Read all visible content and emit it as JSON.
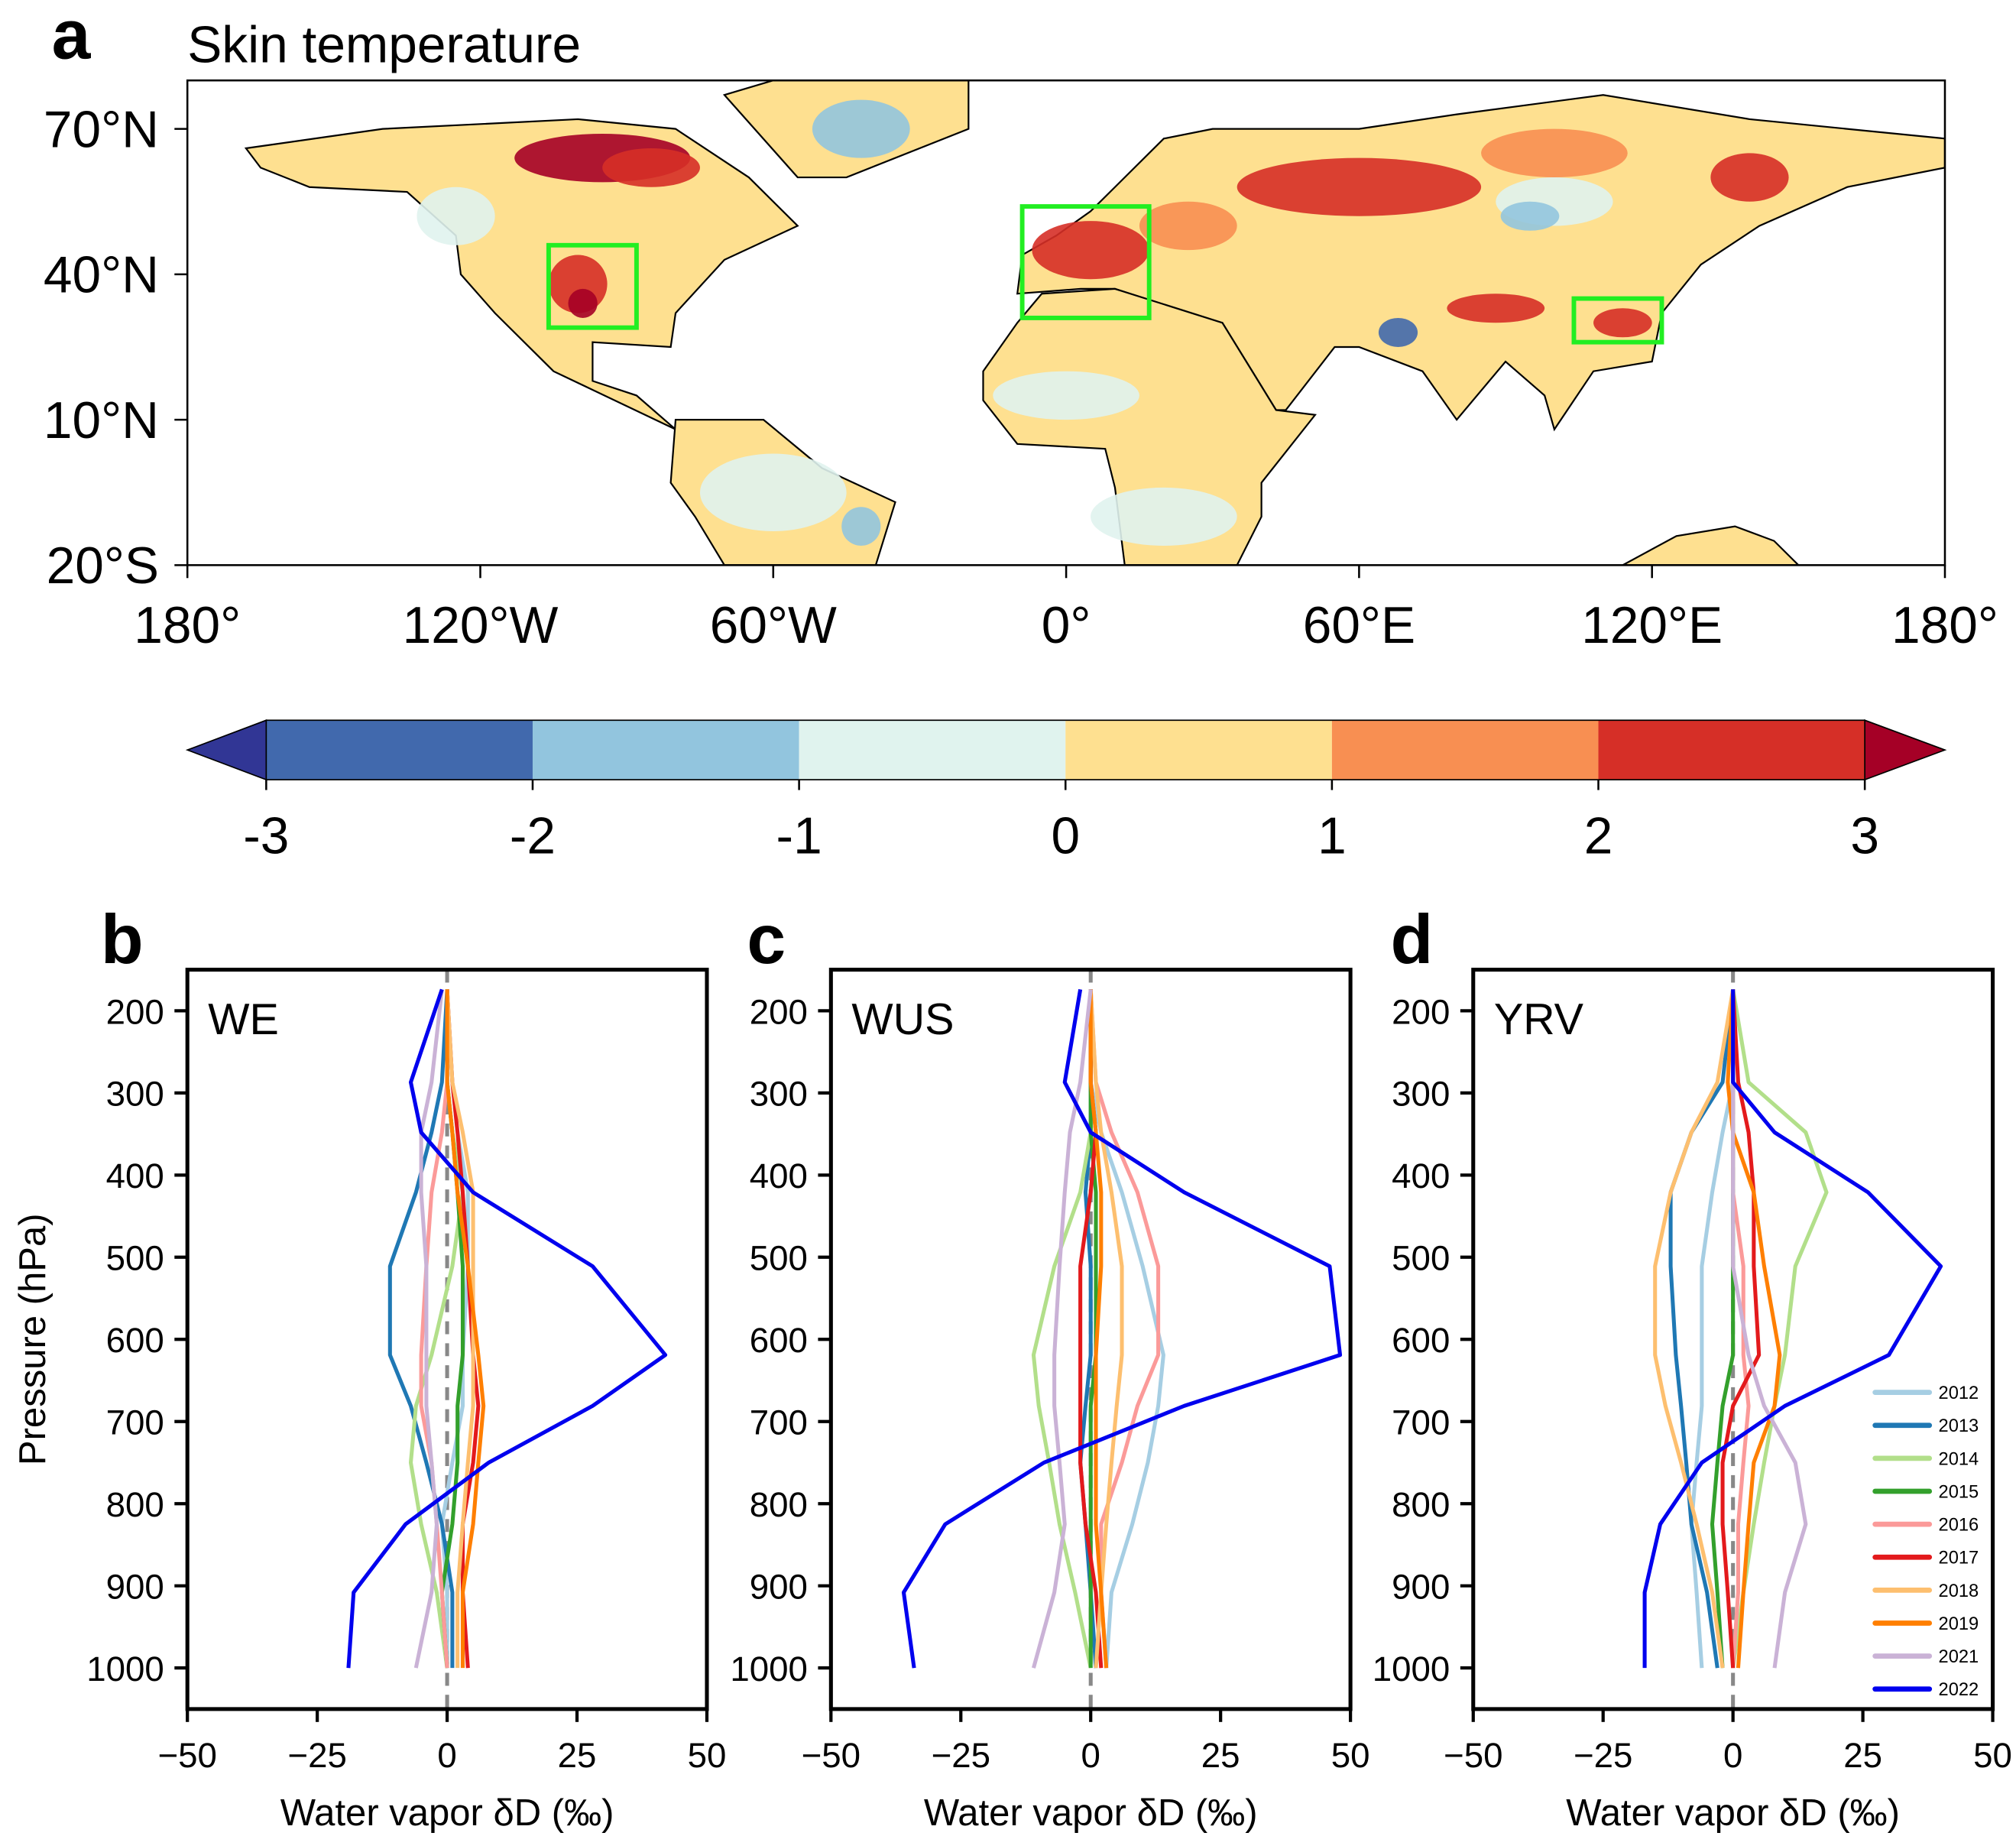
{
  "panel_labels": {
    "a": "a",
    "b": "b",
    "c": "c",
    "d": "d"
  },
  "chart_data": [
    {
      "type": "heatmap",
      "subtype": "map",
      "title": "Skin temperature",
      "lon_range": [
        -180,
        180
      ],
      "lat_range": [
        -20,
        80
      ],
      "lon_ticks": [
        {
          "v": -180,
          "label": "180°"
        },
        {
          "v": -120,
          "label": "120°W"
        },
        {
          "v": -60,
          "label": "60°W"
        },
        {
          "v": 0,
          "label": "0°"
        },
        {
          "v": 60,
          "label": "60°E"
        },
        {
          "v": 120,
          "label": "120°E"
        },
        {
          "v": 180,
          "label": "180°"
        }
      ],
      "lat_ticks": [
        {
          "v": 70,
          "label": "70°N"
        },
        {
          "v": 40,
          "label": "40°N"
        },
        {
          "v": 10,
          "label": "10°N"
        },
        {
          "v": -20,
          "label": "20°S"
        }
      ],
      "regions": [
        {
          "name": "WUS",
          "lon": [
            -106,
            -88
          ],
          "lat": [
            29,
            46
          ]
        },
        {
          "name": "WE",
          "lon": [
            -9,
            17
          ],
          "lat": [
            31,
            54
          ]
        },
        {
          "name": "YRV",
          "lon": [
            104,
            122
          ],
          "lat": [
            26,
            35
          ]
        }
      ],
      "region_box_color": "#22ee22",
      "colorbar": {
        "ticks": [
          "-3",
          "-2",
          "-1",
          "0",
          "1",
          "2",
          "3"
        ],
        "colors": [
          "#313695",
          "#4169ad",
          "#92c5de",
          "#e0f3ee",
          "#fee090",
          "#f88f52",
          "#d62f27",
          "#a50026"
        ],
        "extend": "both"
      }
    },
    {
      "type": "line",
      "region": "WE",
      "xlabel": "Water vapor δD (‰)",
      "ylabel": "Pressure (hPa)",
      "xlim": [
        -50,
        50
      ],
      "ylim": [
        1050,
        150
      ],
      "y_inverted": true,
      "xticks": [
        "−50",
        "−25",
        "0",
        "25",
        "50"
      ],
      "yticks": [
        "200",
        "300",
        "400",
        "500",
        "600",
        "700",
        "800",
        "900",
        "1000"
      ],
      "pressure": [
        1000,
        908,
        825,
        750,
        681,
        619,
        511,
        421,
        348,
        287,
        174
      ],
      "series": [
        {
          "name": "2012",
          "color": "#a6cee3",
          "values": [
            0,
            0,
            -1,
            1,
            3,
            3,
            4,
            4,
            2,
            1,
            0
          ]
        },
        {
          "name": "2013",
          "color": "#1f78b4",
          "values": [
            1,
            1,
            -1,
            -4,
            -7,
            -11,
            -11,
            -6,
            -3,
            -1,
            0
          ]
        },
        {
          "name": "2014",
          "color": "#b2df8a",
          "values": [
            0,
            -2,
            -5,
            -7,
            -6,
            -3,
            1,
            3,
            1,
            0,
            0
          ]
        },
        {
          "name": "2015",
          "color": "#33a02c",
          "values": [
            0,
            -1,
            1,
            2,
            2,
            3,
            3,
            2,
            1,
            0,
            0
          ]
        },
        {
          "name": "2016",
          "color": "#fb9a99",
          "values": [
            0,
            -1,
            -2,
            -3,
            -5,
            -5,
            -4,
            -3,
            -1,
            0,
            0
          ]
        },
        {
          "name": "2017",
          "color": "#e31a1c",
          "values": [
            4,
            3,
            3,
            5,
            6,
            5,
            4,
            3,
            2,
            1,
            0
          ]
        },
        {
          "name": "2018",
          "color": "#fdbf6f",
          "values": [
            2,
            2,
            3,
            4,
            5,
            5,
            5,
            5,
            3,
            1,
            0
          ]
        },
        {
          "name": "2019",
          "color": "#ff7f00",
          "values": [
            3,
            3,
            5,
            6,
            7,
            6,
            4,
            2,
            1,
            0,
            0
          ]
        },
        {
          "name": "2021",
          "color": "#cab2d6",
          "values": [
            -6,
            -3,
            -2,
            -3,
            -4,
            -4,
            -4,
            -5,
            -5,
            -3,
            -1
          ]
        },
        {
          "name": "2022",
          "color": "#0000ee",
          "values": [
            -19,
            -18,
            -8,
            8,
            28,
            42,
            28,
            5,
            -5,
            -7,
            -1
          ]
        }
      ]
    },
    {
      "type": "line",
      "region": "WUS",
      "xlabel": "Water vapor δD (‰)",
      "xlim": [
        -50,
        50
      ],
      "ylim": [
        1050,
        150
      ],
      "y_inverted": true,
      "xticks": [
        "−50",
        "−25",
        "0",
        "25",
        "50"
      ],
      "yticks": [
        "200",
        "300",
        "400",
        "500",
        "600",
        "700",
        "800",
        "900",
        "1000"
      ],
      "pressure": [
        1000,
        908,
        825,
        750,
        681,
        619,
        511,
        421,
        348,
        287,
        174
      ],
      "series": [
        {
          "name": "2012",
          "color": "#a6cee3",
          "values": [
            3,
            4,
            8,
            11,
            13,
            14,
            10,
            6,
            2,
            0,
            0
          ]
        },
        {
          "name": "2013",
          "color": "#1f78b4",
          "values": [
            1,
            0,
            -1,
            -2,
            -1,
            0,
            0,
            -1,
            0,
            0,
            0
          ]
        },
        {
          "name": "2014",
          "color": "#b2df8a",
          "values": [
            0,
            -3,
            -6,
            -8,
            -10,
            -11,
            -7,
            -2,
            0,
            0,
            0
          ]
        },
        {
          "name": "2015",
          "color": "#33a02c",
          "values": [
            0,
            0,
            0,
            0,
            0,
            1,
            1,
            1,
            0,
            0,
            0
          ]
        },
        {
          "name": "2016",
          "color": "#fb9a99",
          "values": [
            3,
            2,
            2,
            6,
            9,
            13,
            13,
            9,
            4,
            1,
            0
          ]
        },
        {
          "name": "2017",
          "color": "#e31a1c",
          "values": [
            2,
            1,
            -1,
            -2,
            -2,
            -2,
            -2,
            0,
            1,
            0,
            0
          ]
        },
        {
          "name": "2018",
          "color": "#fdbf6f",
          "values": [
            1,
            2,
            3,
            4,
            5,
            6,
            6,
            4,
            2,
            1,
            0
          ]
        },
        {
          "name": "2019",
          "color": "#ff7f00",
          "values": [
            3,
            2,
            1,
            1,
            1,
            1,
            2,
            2,
            1,
            0,
            0
          ]
        },
        {
          "name": "2021",
          "color": "#cab2d6",
          "values": [
            -11,
            -7,
            -5,
            -6,
            -7,
            -7,
            -6,
            -5,
            -4,
            -2,
            0
          ]
        },
        {
          "name": "2022",
          "color": "#0000ee",
          "values": [
            -34,
            -36,
            -28,
            -9,
            18,
            48,
            46,
            18,
            0,
            -5,
            -2
          ]
        }
      ]
    },
    {
      "type": "line",
      "region": "YRV",
      "xlabel": "Water vapor δD (‰)",
      "xlim": [
        -50,
        50
      ],
      "ylim": [
        1050,
        150
      ],
      "y_inverted": true,
      "xticks": [
        "−50",
        "−25",
        "0",
        "25",
        "50"
      ],
      "yticks": [
        "200",
        "300",
        "400",
        "500",
        "600",
        "700",
        "800",
        "900",
        "1000"
      ],
      "pressure": [
        1000,
        908,
        825,
        750,
        681,
        619,
        511,
        421,
        348,
        287,
        174
      ],
      "legend_placement": "lower-right",
      "series": [
        {
          "name": "2012",
          "color": "#a6cee3",
          "values": [
            -6,
            -7,
            -8,
            -7,
            -6,
            -6,
            -6,
            -4,
            -2,
            0,
            0
          ]
        },
        {
          "name": "2013",
          "color": "#1f78b4",
          "values": [
            -3,
            -5,
            -8,
            -9,
            -10,
            -11,
            -12,
            -12,
            -8,
            -2,
            0
          ]
        },
        {
          "name": "2014",
          "color": "#b2df8a",
          "values": [
            0,
            2,
            4,
            6,
            8,
            10,
            12,
            18,
            14,
            3,
            0
          ]
        },
        {
          "name": "2015",
          "color": "#33a02c",
          "values": [
            -2,
            -3,
            -4,
            -3,
            -2,
            0,
            0,
            0,
            0,
            0,
            0
          ]
        },
        {
          "name": "2016",
          "color": "#fb9a99",
          "values": [
            0,
            1,
            1,
            2,
            3,
            2,
            2,
            0,
            0,
            0,
            0
          ]
        },
        {
          "name": "2017",
          "color": "#e31a1c",
          "values": [
            0,
            -1,
            -2,
            -2,
            0,
            5,
            4,
            4,
            3,
            1,
            0
          ]
        },
        {
          "name": "2018",
          "color": "#fdbf6f",
          "values": [
            -2,
            -4,
            -7,
            -10,
            -13,
            -15,
            -15,
            -12,
            -8,
            -3,
            0
          ]
        },
        {
          "name": "2019",
          "color": "#ff7f00",
          "values": [
            1,
            2,
            3,
            4,
            8,
            9,
            6,
            4,
            0,
            -1,
            0
          ]
        },
        {
          "name": "2021",
          "color": "#cab2d6",
          "values": [
            8,
            10,
            14,
            12,
            6,
            3,
            0,
            0,
            0,
            0,
            0
          ]
        },
        {
          "name": "2022",
          "color": "#0000ee",
          "values": [
            -17,
            -17,
            -14,
            -6,
            10,
            30,
            40,
            26,
            8,
            0,
            0
          ]
        }
      ]
    }
  ]
}
